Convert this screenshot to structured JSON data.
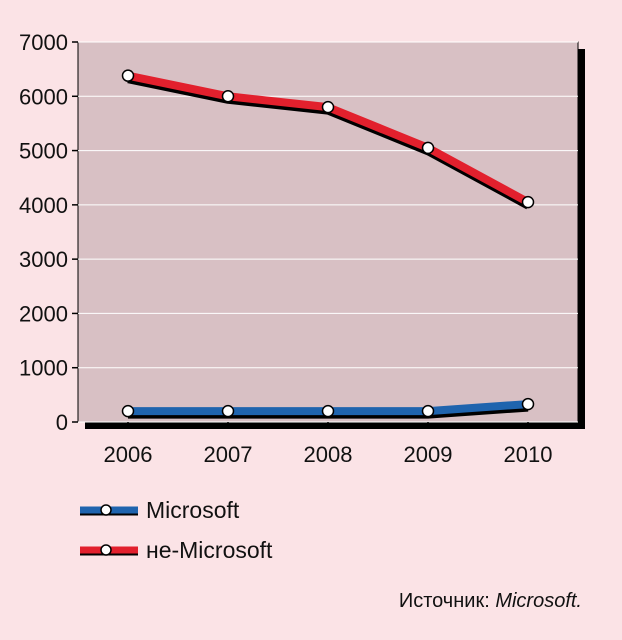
{
  "chart_data": {
    "type": "line",
    "categories": [
      "2006",
      "2007",
      "2008",
      "2009",
      "2010"
    ],
    "series": [
      {
        "name": "Microsoft",
        "values": [
          200,
          200,
          200,
          200,
          330
        ],
        "color": "#1f64ae"
      },
      {
        "name": "не-Microsoft",
        "values": [
          6380,
          6000,
          5800,
          5050,
          4050
        ],
        "color": "#e2202d"
      }
    ],
    "ylim": [
      0,
      7000
    ],
    "yticks": [
      0,
      1000,
      2000,
      3000,
      4000,
      5000,
      6000,
      7000
    ],
    "grid": true,
    "plot_background": "#d8c0c4",
    "legend_position": "bottom-left"
  },
  "source": {
    "prefix": "Источник: ",
    "name": "Microsoft."
  }
}
